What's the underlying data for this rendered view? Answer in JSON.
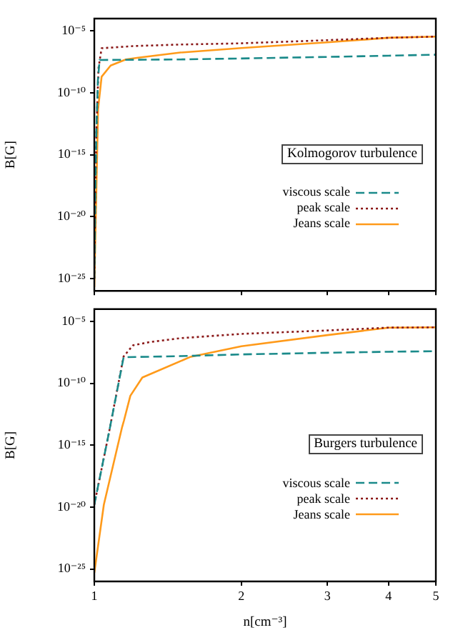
{
  "chart_data": [
    {
      "type": "line",
      "ylabel": "B[G]",
      "log": "xy",
      "xlim": [
        1,
        5
      ],
      "ylim": [
        1e-26,
        0.0001
      ],
      "xticks": [
        1,
        2,
        3,
        4,
        5
      ],
      "yticks": [
        {
          "value": 1e-25,
          "label": "10⁻²⁵"
        },
        {
          "value": 1e-20,
          "label": "10⁻²⁰"
        },
        {
          "value": 1e-15,
          "label": "10⁻¹⁵"
        },
        {
          "value": 1e-10,
          "label": "10⁻¹⁰"
        },
        {
          "value": 1e-05,
          "label": "10⁻⁵"
        }
      ],
      "tick_labels": "y",
      "legend": "bottom right",
      "annotations": [
        "Kolmogorov turbulence"
      ],
      "series": [
        {
          "name": "viscous scale",
          "color": "#1a8a8a",
          "line_style": "dashed",
          "x": [
            1,
            1.005,
            1.01,
            1.017,
            1.025,
            1.5,
            2,
            3,
            4,
            5
          ],
          "values": [
            1e-25,
            1e-18,
            1e-13,
            1e-09,
            4.5e-08,
            5e-08,
            6e-08,
            8e-08,
            1e-07,
            1.2e-07
          ]
        },
        {
          "name": "peak scale",
          "color": "#8b1a1a",
          "line_style": "dotted",
          "x": [
            1,
            1.005,
            1.01,
            1.02,
            1.035,
            1.2,
            1.5,
            2,
            3,
            4,
            5
          ],
          "values": [
            1e-25,
            1e-18,
            1e-13,
            1e-08,
            4e-07,
            6e-07,
            8e-07,
            1e-06,
            1.8e-06,
            2.8e-06,
            3.5e-06
          ]
        },
        {
          "name": "Jeans scale",
          "color": "#ff9a1a",
          "line_style": "solid",
          "x": [
            1,
            1.007,
            1.018,
            1.035,
            1.08,
            1.16,
            1.23,
            1.5,
            2,
            3,
            4,
            5
          ],
          "values": [
            2e-26,
            1e-20,
            5e-12,
            2e-09,
            1.6e-08,
            5e-08,
            7e-08,
            1.8e-07,
            4.2e-07,
            1.2e-06,
            2.8e-06,
            3.5e-06
          ]
        }
      ]
    },
    {
      "type": "line",
      "xlabel": "n[cm⁻³]",
      "ylabel": "B[G]",
      "log": "xy",
      "xlim": [
        1,
        5
      ],
      "ylim": [
        1e-26,
        0.0001
      ],
      "xticks": [
        1,
        2,
        3,
        4,
        5
      ],
      "yticks": [
        {
          "value": 1e-25,
          "label": "10⁻²⁵"
        },
        {
          "value": 1e-20,
          "label": "10⁻²⁰"
        },
        {
          "value": 1e-15,
          "label": "10⁻¹⁵"
        },
        {
          "value": 1e-10,
          "label": "10⁻¹⁰"
        },
        {
          "value": 1e-05,
          "label": "10⁻⁵"
        }
      ],
      "legend": "bottom right",
      "annotations": [
        "Burgers turbulence"
      ],
      "series": [
        {
          "name": "viscous scale",
          "color": "#1a8a8a",
          "line_style": "dashed",
          "x": [
            1,
            1.07,
            1.148,
            1.5,
            2,
            3,
            4,
            5
          ],
          "values": [
            1.6e-20,
            8e-15,
            1.3e-08,
            1.6e-08,
            2.2e-08,
            3e-08,
            3.6e-08,
            4e-08
          ]
        },
        {
          "name": "peak scale",
          "color": "#8b1a1a",
          "line_style": "dotted",
          "x": [
            1,
            1.07,
            1.148,
            1.2,
            1.3,
            1.5,
            2,
            3,
            4,
            5
          ],
          "values": [
            1.6e-20,
            8e-15,
            1.5e-08,
            1.2e-07,
            2.2e-07,
            4.5e-07,
            1e-06,
            1.9e-06,
            3.2e-06,
            3.4e-06
          ]
        },
        {
          "name": "Jeans scale",
          "color": "#ff9a1a",
          "line_style": "solid",
          "x": [
            1,
            1.046,
            1.14,
            1.15,
            1.185,
            1.254,
            1.57,
            2,
            3,
            4,
            5
          ],
          "values": [
            5e-26,
            1.6e-20,
            3e-14,
            1e-13,
            1e-11,
            3e-10,
            1.35e-08,
            1e-07,
            8e-07,
            3.2e-06,
            3.4e-06
          ]
        }
      ]
    }
  ]
}
